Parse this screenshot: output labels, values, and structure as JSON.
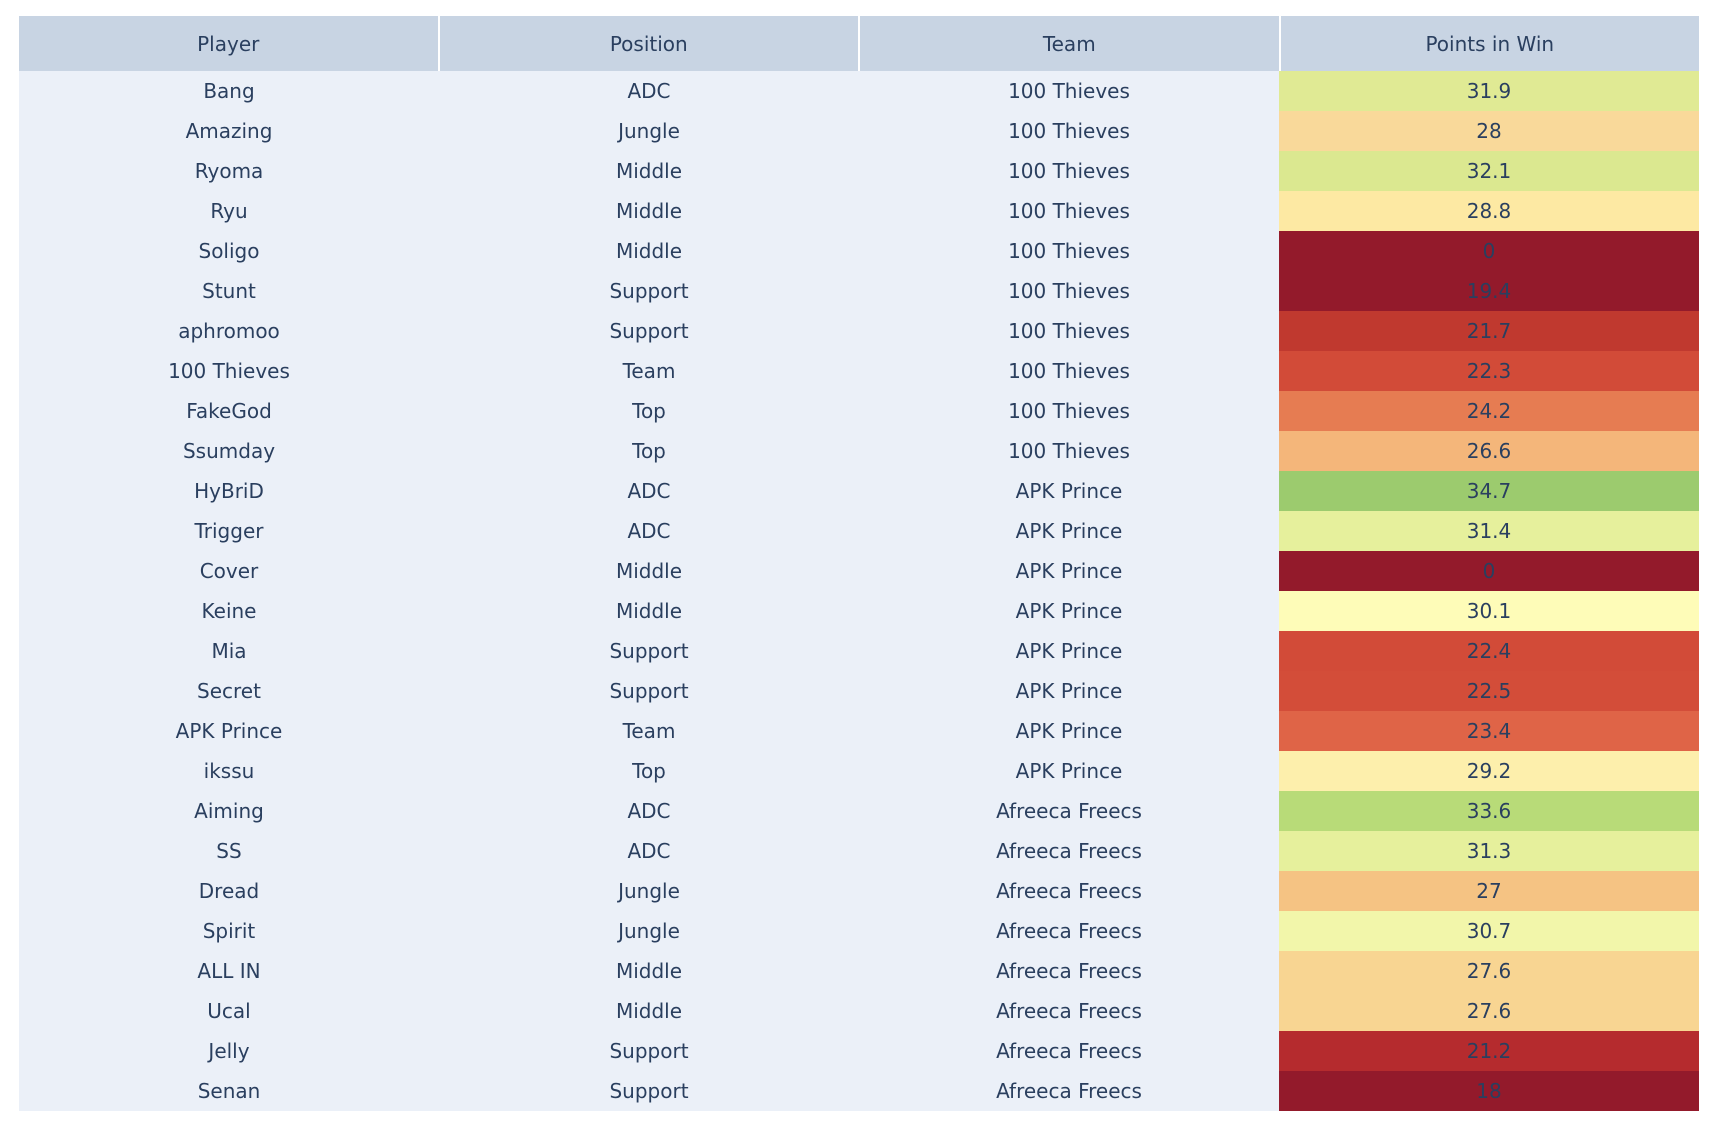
{
  "table": {
    "header": [
      "Player",
      "Position",
      "Team",
      "Points in Win"
    ],
    "rows": [
      [
        "Bang",
        "ADC",
        "100 Thieves",
        31.9
      ],
      [
        "Amazing",
        "Jungle",
        "100 Thieves",
        28
      ],
      [
        "Ryoma",
        "Middle",
        "100 Thieves",
        32.1
      ],
      [
        "Ryu",
        "Middle",
        "100 Thieves",
        28.8
      ],
      [
        "Soligo",
        "Middle",
        "100 Thieves",
        0
      ],
      [
        "Stunt",
        "Support",
        "100 Thieves",
        19.4
      ],
      [
        "aphromoo",
        "Support",
        "100 Thieves",
        21.7
      ],
      [
        "100 Thieves",
        "Team",
        "100 Thieves",
        22.3
      ],
      [
        "FakeGod",
        "Top",
        "100 Thieves",
        24.2
      ],
      [
        "Ssumday",
        "Top",
        "100 Thieves",
        26.6
      ],
      [
        "HyBriD",
        "ADC",
        "APK Prince",
        34.7
      ],
      [
        "Trigger",
        "ADC",
        "APK Prince",
        31.4
      ],
      [
        "Cover",
        "Middle",
        "APK Prince",
        0
      ],
      [
        "Keine",
        "Middle",
        "APK Prince",
        30.1
      ],
      [
        "Mia",
        "Support",
        "APK Prince",
        22.4
      ],
      [
        "Secret",
        "Support",
        "APK Prince",
        22.5
      ],
      [
        "APK Prince",
        "Team",
        "APK Prince",
        23.4
      ],
      [
        "ikssu",
        "Top",
        "APK Prince",
        29.2
      ],
      [
        "Aiming",
        "ADC",
        "Afreeca Freecs",
        33.6
      ],
      [
        "SS",
        "ADC",
        "Afreeca Freecs",
        31.3
      ],
      [
        "Dread",
        "Jungle",
        "Afreeca Freecs",
        27
      ],
      [
        "Spirit",
        "Jungle",
        "Afreeca Freecs",
        30.7
      ],
      [
        "ALL IN",
        "Middle",
        "Afreeca Freecs",
        27.6
      ],
      [
        "Ucal",
        "Middle",
        "Afreeca Freecs",
        27.6
      ],
      [
        "Jelly",
        "Support",
        "Afreeca Freecs",
        21.2
      ],
      [
        "Senan",
        "Support",
        "Afreeca Freecs",
        18
      ]
    ],
    "points_colors": [
      "#e0ea94",
      "#f9d99a",
      "#dbe890",
      "#fde9a3",
      "#931a2b",
      "#931a2b",
      "#c0392f",
      "#d24b38",
      "#e67c52",
      "#f4b67a",
      "#9ccb6e",
      "#e6f09c",
      "#931a2b",
      "#fefcb8",
      "#d24b38",
      "#d34d39",
      "#df6447",
      "#fdefac",
      "#b8db78",
      "#e6f09c",
      "#f5c383",
      "#f2f6aa",
      "#f8d592",
      "#f8d592",
      "#b52b2e",
      "#931a2b"
    ]
  }
}
